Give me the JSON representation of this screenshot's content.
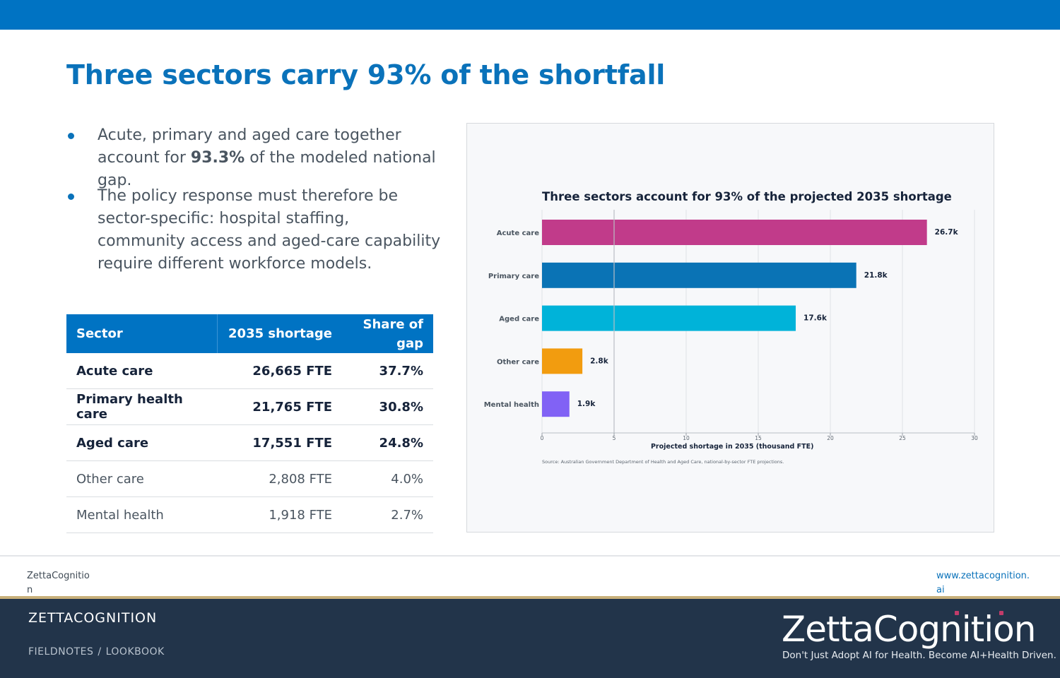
{
  "slide": {
    "title": "Three sectors carry 93% of the shortfall",
    "bullets": [
      {
        "pre": "Acute, primary and aged care together account for ",
        "bold": "93.3%",
        "post": " of the modeled national gap."
      },
      {
        "text": "The policy response must therefore be sector-specific: hospital staffing, community access and aged-care capability require different workforce models."
      }
    ],
    "table": {
      "headers": [
        "Sector",
        "2035 shortage",
        "Share of gap"
      ],
      "rows": [
        {
          "sector": "Acute care",
          "shortage": "26,665 FTE",
          "share": "37.7%"
        },
        {
          "sector": "Primary health care",
          "shortage": "21,765 FTE",
          "share": "30.8%"
        },
        {
          "sector": "Aged care",
          "shortage": "17,551 FTE",
          "share": "24.8%"
        },
        {
          "sector": "Other care",
          "shortage": "2,808 FTE",
          "share": "4.0%"
        },
        {
          "sector": "Mental health",
          "shortage": "1,918 FTE",
          "share": "2.7%"
        }
      ]
    }
  },
  "chart_data": {
    "type": "bar",
    "orientation": "horizontal",
    "title": "Three sectors account for 93% of the projected 2035 shortage",
    "xlabel": "Projected shortage in 2035 (thousand FTE)",
    "ylabel": "",
    "categories": [
      "Acute care",
      "Primary care",
      "Aged care",
      "Other care",
      "Mental health"
    ],
    "values": [
      26.7,
      21.8,
      17.6,
      2.8,
      1.9
    ],
    "data_labels": [
      "26.7k",
      "21.8k",
      "17.6k",
      "2.8k",
      "1.9k"
    ],
    "colors": [
      "#c13b8a",
      "#0a73b5",
      "#00b3d9",
      "#f29c0f",
      "#8162f5"
    ],
    "xlim": [
      0,
      30
    ],
    "xticks": [
      0,
      5,
      10,
      15,
      20,
      25,
      30
    ],
    "grid": true,
    "source": "Source: Australian Government Department of Health and Aged Care, national-by-sector FTE projections."
  },
  "footer": {
    "left": "ZettaCognition",
    "right": "www.zettacognition.ai",
    "brand": "ZETTACOGNITION",
    "crumbs": [
      "FIELDNOTES",
      "LOOKBOOK"
    ],
    "crumb_sep": "/",
    "logo_text": "ZettaCognition",
    "logo_tagline": "Don't Just Adopt AI for Health. Become AI+Health Driven."
  },
  "colors": {
    "accent": "#0073c3",
    "footer_bg": "#22344a",
    "gold": "#c8b07a"
  }
}
